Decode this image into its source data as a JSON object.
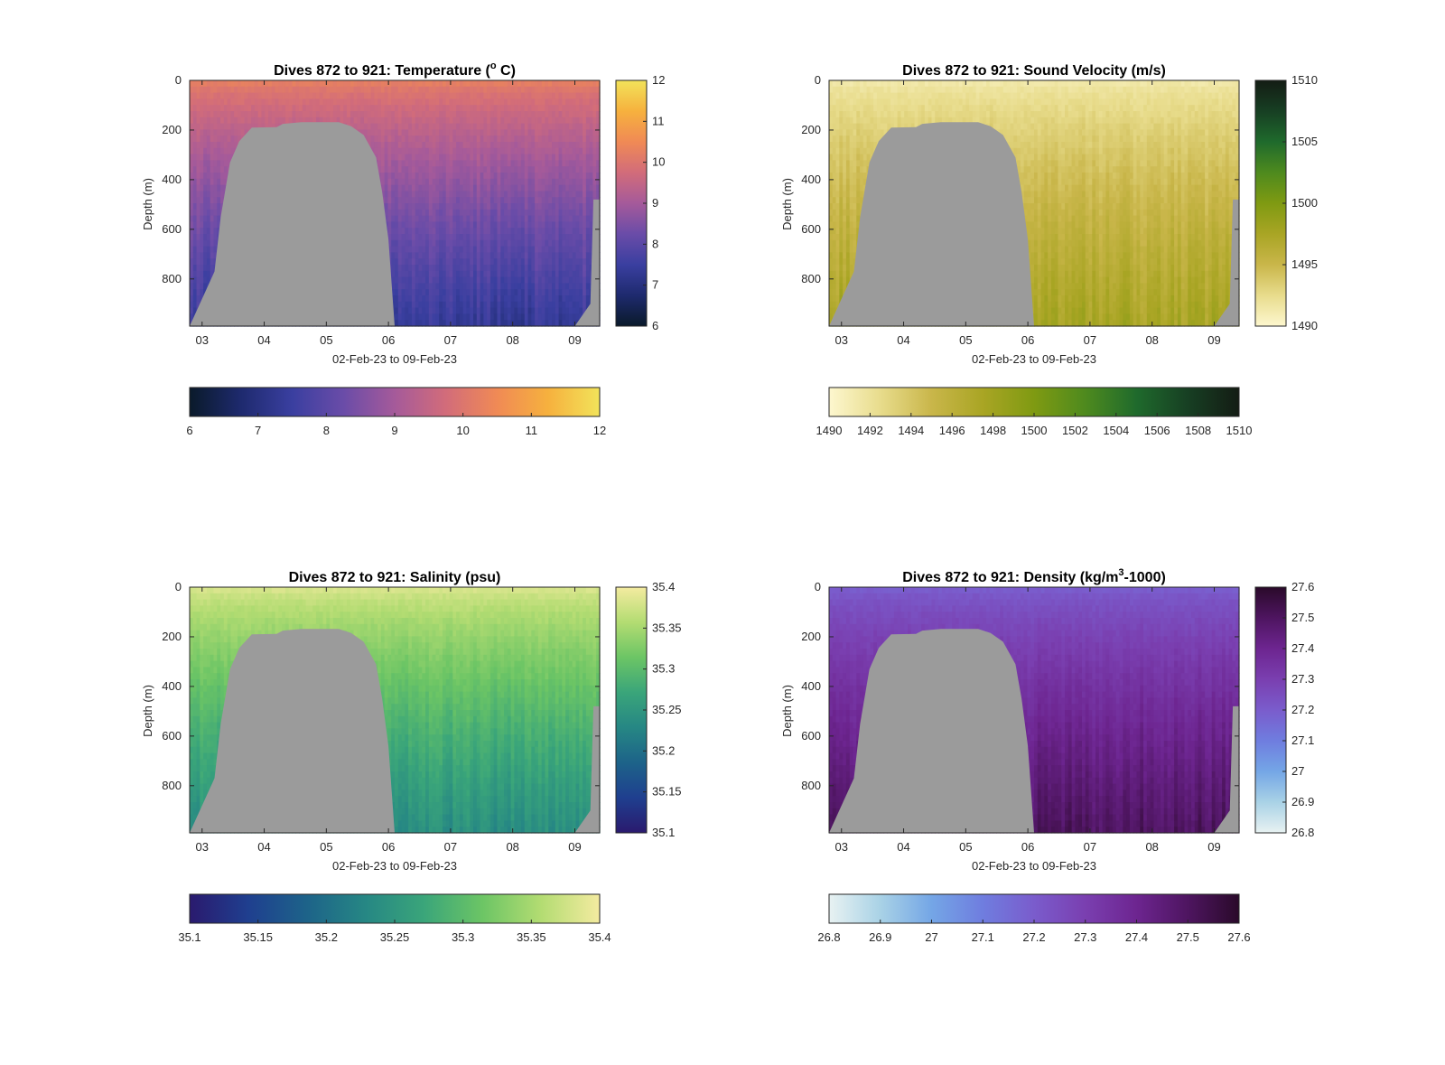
{
  "figure": {
    "background": "#ffffff",
    "panels": [
      {
        "id": "temperature",
        "title": "Dives 872 to 921: Temperature (",
        "title_sup": "o",
        "title_after": " C)",
        "ylabel": "Depth (m)",
        "xlabel": "02-Feb-23 to 09-Feb-23",
        "colormap": [
          "#0a1a2a",
          "#1e2a6e",
          "#3a3fa0",
          "#6a4ca8",
          "#a55a9a",
          "#d26c7a",
          "#f08a55",
          "#f6b13e",
          "#f2e35a"
        ],
        "mask_color": "#9b9b9b"
      },
      {
        "id": "sound-velocity",
        "title": "Dives 872 to 921: Sound Velocity (m/s)",
        "title_sup": "",
        "title_after": "",
        "ylabel": "Depth (m)",
        "xlabel": "02-Feb-23 to 09-Feb-23",
        "colormap": [
          "#fdf7cf",
          "#e8dc8c",
          "#c9b64a",
          "#a9a524",
          "#7f9a12",
          "#4e8a1e",
          "#1f6a2c",
          "#173f23",
          "#141c14"
        ],
        "mask_color": "#9b9b9b"
      },
      {
        "id": "salinity",
        "title": "Dives 872 to 921: Salinity (psu)",
        "title_sup": "",
        "title_after": "",
        "ylabel": "Depth (m)",
        "xlabel": "02-Feb-23 to 09-Feb-23",
        "colormap": [
          "#2a1a6e",
          "#1f3f8f",
          "#1d6389",
          "#268784",
          "#3aa57a",
          "#6cc565",
          "#b3dc72",
          "#f4eba0"
        ],
        "mask_color": "#9b9b9b"
      },
      {
        "id": "density",
        "title": "Dives 872 to 921: Density (kg/m",
        "title_sup": "3",
        "title_after": "-1000)",
        "ylabel": "Depth (m)",
        "xlabel": "02-Feb-23 to 09-Feb-23",
        "colormap": [
          "#e8f2f2",
          "#a9d2e6",
          "#74a6e6",
          "#6f7ddf",
          "#7a5ccc",
          "#7a3fb0",
          "#6d2590",
          "#4e1560",
          "#2a0a2a"
        ],
        "mask_color": "#9b9b9b"
      }
    ]
  },
  "chart_data": [
    {
      "type": "heatmap",
      "title": "Dives 872 to 921: Temperature (° C)",
      "xlabel": "02-Feb-23 to 09-Feb-23",
      "ylabel": "Depth (m)",
      "x_ticks": [
        "03",
        "04",
        "05",
        "06",
        "07",
        "08",
        "09"
      ],
      "x_tick_values": [
        3,
        4,
        5,
        6,
        7,
        8,
        9
      ],
      "xlim": [
        2.8,
        9.4
      ],
      "y_ticks": [
        0,
        200,
        400,
        600,
        800
      ],
      "ylim": [
        0,
        990
      ],
      "y_reversed": true,
      "colorbar_vertical": {
        "range": [
          6,
          12
        ],
        "ticks": [
          6,
          7,
          8,
          9,
          10,
          11,
          12
        ]
      },
      "colorbar_horizontal": {
        "range": [
          6,
          12
        ],
        "ticks": [
          6,
          7,
          8,
          9,
          10,
          11,
          12
        ]
      },
      "surface_value": 10.2,
      "bottom_value": 7.4,
      "grid": false,
      "bathymetry_depth": [
        [
          2.8,
          990
        ],
        [
          3.2,
          770
        ],
        [
          3.3,
          550
        ],
        [
          3.45,
          330
        ],
        [
          3.6,
          245
        ],
        [
          3.8,
          190
        ],
        [
          4.2,
          188
        ],
        [
          4.3,
          175
        ],
        [
          4.6,
          168
        ],
        [
          5.2,
          168
        ],
        [
          5.4,
          185
        ],
        [
          5.6,
          220
        ],
        [
          5.8,
          310
        ],
        [
          5.9,
          450
        ],
        [
          6.0,
          640
        ],
        [
          6.1,
          990
        ],
        [
          9.0,
          990
        ],
        [
          9.25,
          900
        ],
        [
          9.3,
          480
        ],
        [
          9.4,
          480
        ]
      ]
    },
    {
      "type": "heatmap",
      "title": "Dives 872 to 921: Sound Velocity (m/s)",
      "xlabel": "02-Feb-23 to 09-Feb-23",
      "ylabel": "Depth (m)",
      "x_ticks": [
        "03",
        "04",
        "05",
        "06",
        "07",
        "08",
        "09"
      ],
      "x_tick_values": [
        3,
        4,
        5,
        6,
        7,
        8,
        9
      ],
      "xlim": [
        2.8,
        9.4
      ],
      "y_ticks": [
        0,
        200,
        400,
        600,
        800
      ],
      "ylim": [
        0,
        990
      ],
      "y_reversed": true,
      "colorbar_vertical": {
        "range": [
          1490,
          1510
        ],
        "ticks": [
          1490,
          1495,
          1500,
          1505,
          1510
        ]
      },
      "colorbar_horizontal": {
        "range": [
          1490,
          1510
        ],
        "ticks": [
          1490,
          1492,
          1494,
          1496,
          1498,
          1500,
          1502,
          1504,
          1506,
          1508,
          1510
        ]
      },
      "surface_value": 1491.5,
      "bottom_value": 1497.5,
      "grid": false,
      "bathymetry_depth": [
        [
          2.8,
          990
        ],
        [
          3.2,
          770
        ],
        [
          3.3,
          550
        ],
        [
          3.45,
          330
        ],
        [
          3.6,
          245
        ],
        [
          3.8,
          190
        ],
        [
          4.2,
          188
        ],
        [
          4.3,
          175
        ],
        [
          4.6,
          168
        ],
        [
          5.2,
          168
        ],
        [
          5.4,
          185
        ],
        [
          5.6,
          220
        ],
        [
          5.8,
          310
        ],
        [
          5.9,
          450
        ],
        [
          6.0,
          640
        ],
        [
          6.1,
          990
        ],
        [
          9.0,
          990
        ],
        [
          9.25,
          900
        ],
        [
          9.3,
          480
        ],
        [
          9.4,
          480
        ]
      ]
    },
    {
      "type": "heatmap",
      "title": "Dives 872 to 921: Salinity (psu)",
      "xlabel": "02-Feb-23 to 09-Feb-23",
      "ylabel": "Depth (m)",
      "x_ticks": [
        "03",
        "04",
        "05",
        "06",
        "07",
        "08",
        "09"
      ],
      "x_tick_values": [
        3,
        4,
        5,
        6,
        7,
        8,
        9
      ],
      "xlim": [
        2.8,
        9.4
      ],
      "y_ticks": [
        0,
        200,
        400,
        600,
        800
      ],
      "ylim": [
        0,
        990
      ],
      "y_reversed": true,
      "colorbar_vertical": {
        "range": [
          35.1,
          35.4
        ],
        "ticks": [
          35.1,
          35.15,
          35.2,
          35.25,
          35.3,
          35.35,
          35.4
        ]
      },
      "colorbar_horizontal": {
        "range": [
          35.1,
          35.4
        ],
        "ticks": [
          35.1,
          35.15,
          35.2,
          35.25,
          35.3,
          35.35,
          35.4
        ]
      },
      "surface_value": 35.38,
      "bottom_value": 35.24,
      "grid": false,
      "bathymetry_depth": [
        [
          2.8,
          990
        ],
        [
          3.2,
          770
        ],
        [
          3.3,
          550
        ],
        [
          3.45,
          330
        ],
        [
          3.6,
          245
        ],
        [
          3.8,
          190
        ],
        [
          4.2,
          188
        ],
        [
          4.3,
          175
        ],
        [
          4.6,
          168
        ],
        [
          5.2,
          168
        ],
        [
          5.4,
          185
        ],
        [
          5.6,
          220
        ],
        [
          5.8,
          310
        ],
        [
          5.9,
          450
        ],
        [
          6.0,
          640
        ],
        [
          6.1,
          990
        ],
        [
          9.0,
          990
        ],
        [
          9.25,
          900
        ],
        [
          9.3,
          480
        ],
        [
          9.4,
          480
        ]
      ]
    },
    {
      "type": "heatmap",
      "title": "Dives 872 to 921: Density (kg/m³-1000)",
      "xlabel": "02-Feb-23 to 09-Feb-23",
      "ylabel": "Depth (m)",
      "x_ticks": [
        "03",
        "04",
        "05",
        "06",
        "07",
        "08",
        "09"
      ],
      "x_tick_values": [
        3,
        4,
        5,
        6,
        7,
        8,
        9
      ],
      "xlim": [
        2.8,
        9.4
      ],
      "y_ticks": [
        0,
        200,
        400,
        600,
        800
      ],
      "ylim": [
        0,
        990
      ],
      "y_reversed": true,
      "colorbar_vertical": {
        "range": [
          26.8,
          27.6
        ],
        "ticks": [
          26.8,
          26.9,
          27,
          27.1,
          27.2,
          27.3,
          27.4,
          27.5,
          27.6
        ]
      },
      "colorbar_horizontal": {
        "range": [
          26.8,
          27.6
        ],
        "ticks": [
          26.8,
          26.9,
          27,
          27.1,
          27.2,
          27.3,
          27.4,
          27.5,
          27.6
        ]
      },
      "surface_value": 27.2,
      "bottom_value": 27.5,
      "grid": false,
      "bathymetry_depth": [
        [
          2.8,
          990
        ],
        [
          3.2,
          770
        ],
        [
          3.3,
          550
        ],
        [
          3.45,
          330
        ],
        [
          3.6,
          245
        ],
        [
          3.8,
          190
        ],
        [
          4.2,
          188
        ],
        [
          4.3,
          175
        ],
        [
          4.6,
          168
        ],
        [
          5.2,
          168
        ],
        [
          5.4,
          185
        ],
        [
          5.6,
          220
        ],
        [
          5.8,
          310
        ],
        [
          5.9,
          450
        ],
        [
          6.0,
          640
        ],
        [
          6.1,
          990
        ],
        [
          9.0,
          990
        ],
        [
          9.25,
          900
        ],
        [
          9.3,
          480
        ],
        [
          9.4,
          480
        ]
      ]
    }
  ]
}
